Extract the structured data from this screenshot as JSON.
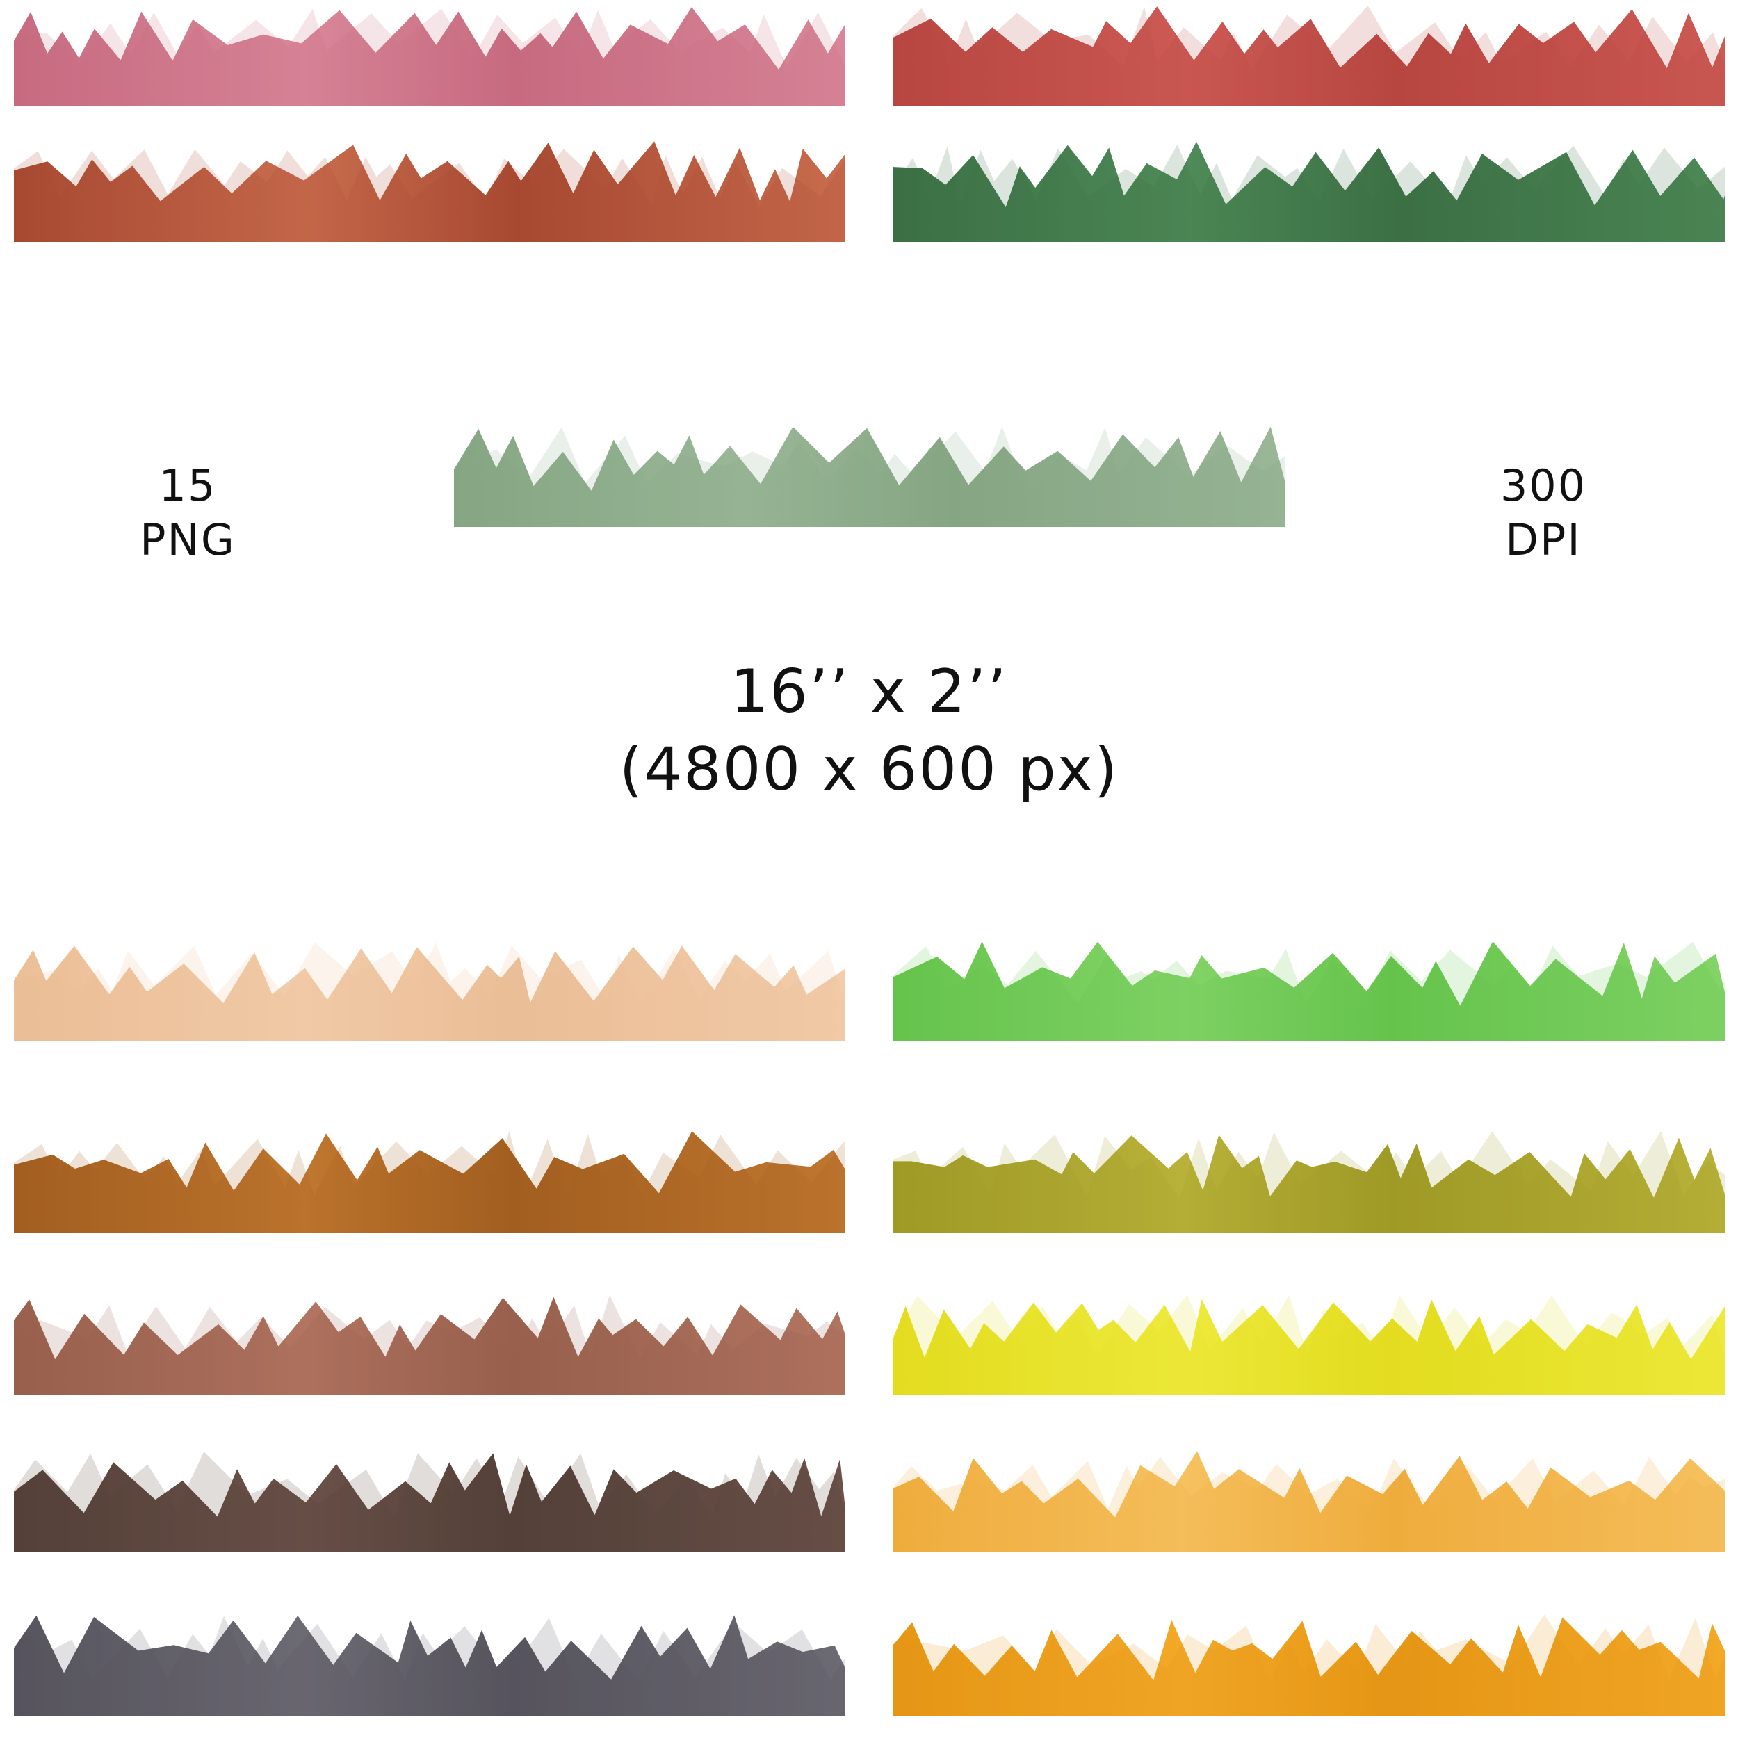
{
  "labels": {
    "count": "15",
    "format": "PNG",
    "resolution_value": "300",
    "resolution_unit": "DPI",
    "dimensions_inches": "16’’ x 2’’",
    "dimensions_pixels": "(4800 x 600 px)"
  },
  "borders": [
    {
      "name": "pink",
      "color": "#d9879a",
      "shade": "#c76b80"
    },
    {
      "name": "red",
      "color": "#cd5a55",
      "shade": "#b84641"
    },
    {
      "name": "rust",
      "color": "#c96d4e",
      "shade": "#a84a32"
    },
    {
      "name": "dark-green",
      "color": "#4f8a58",
      "shade": "#3b7045"
    },
    {
      "name": "sage",
      "color": "#9ab797",
      "shade": "#86a683"
    },
    {
      "name": "peach",
      "color": "#f3ccaa",
      "shade": "#ebbf97"
    },
    {
      "name": "lime",
      "color": "#83d467",
      "shade": "#66c44c"
    },
    {
      "name": "ochre-brown",
      "color": "#c0772f",
      "shade": "#a35f20"
    },
    {
      "name": "olive",
      "color": "#b8b23a",
      "shade": "#9f9a26"
    },
    {
      "name": "clay",
      "color": "#b27561",
      "shade": "#98604d"
    },
    {
      "name": "yellow",
      "color": "#eeea3c",
      "shade": "#e3dc1f"
    },
    {
      "name": "umber",
      "color": "#6b5149",
      "shade": "#544039"
    },
    {
      "name": "light-orange",
      "color": "#f6c160",
      "shade": "#f0ad3e"
    },
    {
      "name": "charcoal",
      "color": "#6c6a73",
      "shade": "#56545d"
    },
    {
      "name": "orange",
      "color": "#f3a827",
      "shade": "#e69615"
    }
  ]
}
